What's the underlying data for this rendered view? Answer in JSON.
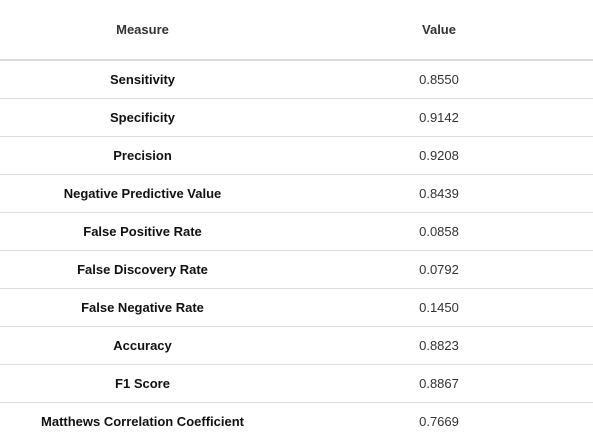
{
  "table": {
    "headers": {
      "measure": "Measure",
      "value": "Value"
    },
    "rows": [
      {
        "measure": "Sensitivity",
        "value": "0.8550"
      },
      {
        "measure": "Specificity",
        "value": "0.9142"
      },
      {
        "measure": "Precision",
        "value": "0.9208"
      },
      {
        "measure": "Negative Predictive Value",
        "value": "0.8439"
      },
      {
        "measure": "False Positive Rate",
        "value": "0.0858"
      },
      {
        "measure": "False Discovery Rate",
        "value": "0.0792"
      },
      {
        "measure": "False Negative Rate",
        "value": "0.1450"
      },
      {
        "measure": "Accuracy",
        "value": "0.8823"
      },
      {
        "measure": "F1 Score",
        "value": "0.8867"
      },
      {
        "measure": "Matthews Correlation Coefficient",
        "value": "0.7669"
      }
    ]
  }
}
